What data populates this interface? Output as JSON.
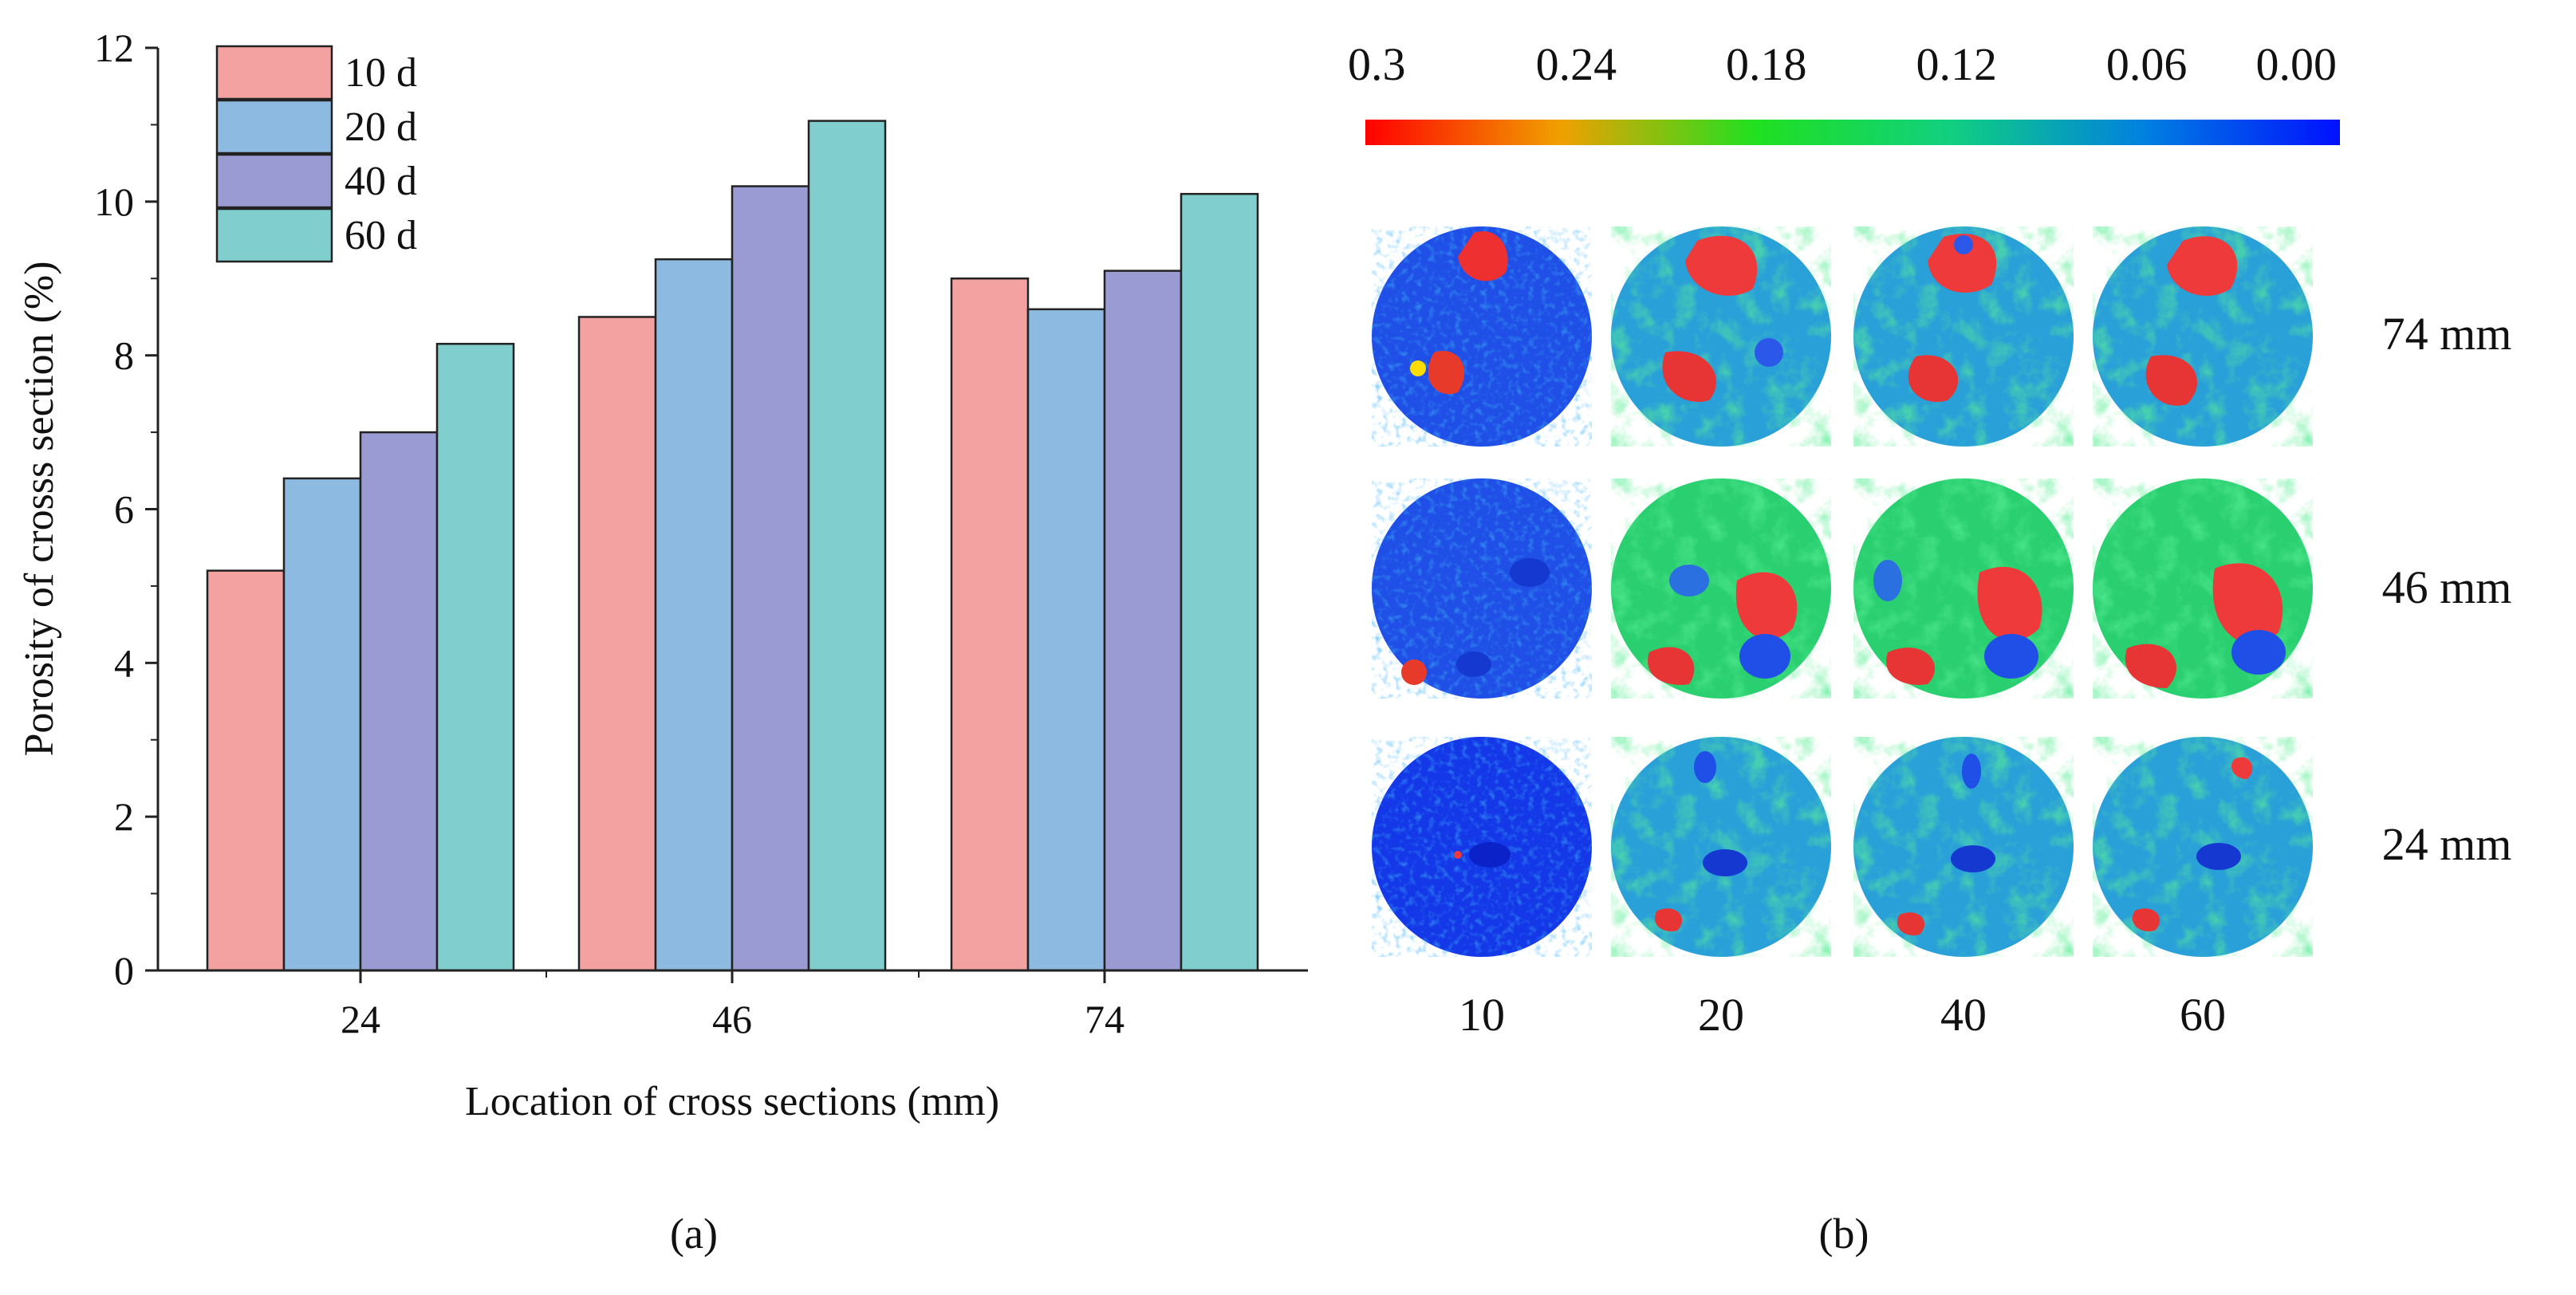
{
  "panel_a": {
    "label": "(a)",
    "chart_data": {
      "type": "bar",
      "xlabel": "Location of cross sections (mm)",
      "ylabel": "Porosity of crosss section (%)",
      "ylim": [
        0,
        12
      ],
      "yticks": [
        0,
        2,
        4,
        6,
        8,
        10,
        12
      ],
      "categories": [
        "24",
        "46",
        "74"
      ],
      "series": [
        {
          "name": "10 d",
          "color": "#f4a1a1",
          "values": [
            5.2,
            8.5,
            9.0
          ]
        },
        {
          "name": "20 d",
          "color": "#8dbae0",
          "values": [
            6.4,
            9.25,
            8.6
          ]
        },
        {
          "name": "40 d",
          "color": "#9b9bd3",
          "values": [
            7.0,
            10.2,
            9.1
          ]
        },
        {
          "name": "60 d",
          "color": "#80cece",
          "values": [
            8.15,
            11.05,
            10.1
          ]
        }
      ],
      "legend_position": "top-left",
      "grid": false
    }
  },
  "panel_b": {
    "label": "(b)",
    "colorbar": {
      "tick_labels": [
        "0.3",
        "0.24",
        "0.18",
        "0.12",
        "0.06",
        "0.00"
      ],
      "colors": [
        "#ff0000",
        "#f0a000",
        "#20e020",
        "#10d080",
        "#0080e0",
        "#0010ff"
      ]
    },
    "row_labels": [
      "74 mm",
      "46 mm",
      "24 mm"
    ],
    "column_labels": [
      "10",
      "20",
      "40",
      "60"
    ]
  }
}
